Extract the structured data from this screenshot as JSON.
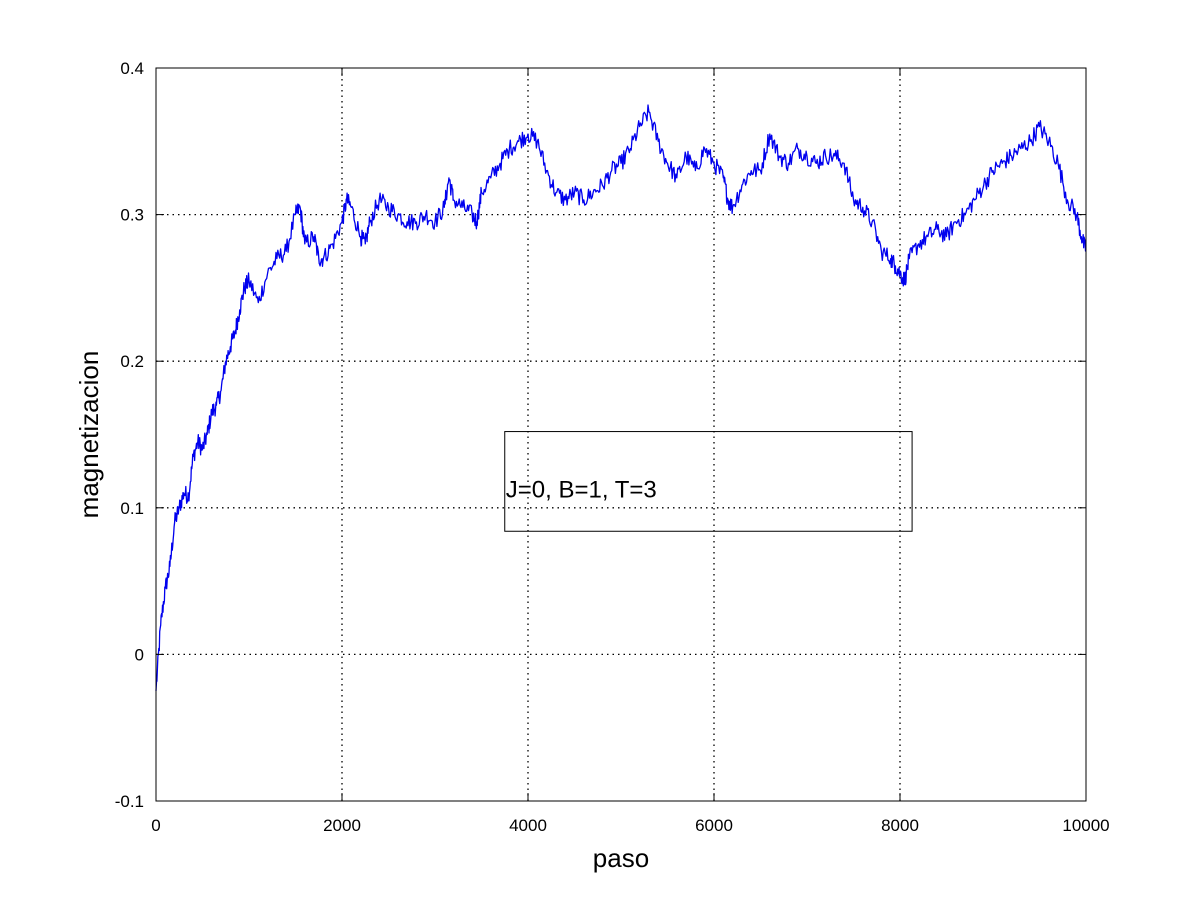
{
  "chart_data": {
    "type": "line",
    "title": "",
    "xlabel": "paso",
    "ylabel": "magnetizacion",
    "xlim": [
      0,
      10000
    ],
    "ylim": [
      -0.1,
      0.4
    ],
    "xticks": [
      0,
      2000,
      4000,
      6000,
      8000,
      10000
    ],
    "xtick_labels": [
      "0",
      "2000",
      "4000",
      "6000",
      "8000",
      "10000"
    ],
    "yticks": [
      -0.1,
      0,
      0.1,
      0.2,
      0.3,
      0.4
    ],
    "ytick_labels": [
      "-0.1",
      "0",
      "0.1",
      "0.2",
      "0.3",
      "0.4"
    ],
    "grid": true,
    "series": [
      {
        "color": "#0000ee",
        "x": [
          0,
          50,
          100,
          150,
          200,
          250,
          300,
          350,
          400,
          450,
          500,
          550,
          600,
          650,
          700,
          750,
          800,
          850,
          900,
          950,
          1000,
          1100,
          1200,
          1300,
          1400,
          1500,
          1550,
          1600,
          1700,
          1750,
          1800,
          1900,
          2000,
          2050,
          2100,
          2200,
          2250,
          2300,
          2400,
          2500,
          2600,
          2700,
          2800,
          2900,
          3000,
          3100,
          3150,
          3200,
          3300,
          3400,
          3450,
          3500,
          3600,
          3700,
          3800,
          3900,
          4000,
          4100,
          4200,
          4300,
          4400,
          4500,
          4600,
          4700,
          4800,
          4900,
          5000,
          5100,
          5200,
          5300,
          5400,
          5500,
          5600,
          5700,
          5800,
          5900,
          6000,
          6100,
          6150,
          6200,
          6300,
          6400,
          6500,
          6600,
          6700,
          6800,
          6900,
          7000,
          7100,
          7200,
          7300,
          7400,
          7500,
          7600,
          7700,
          7800,
          7900,
          7950,
          8000,
          8050,
          8100,
          8200,
          8300,
          8400,
          8500,
          8600,
          8700,
          8800,
          8900,
          9000,
          9100,
          9200,
          9300,
          9400,
          9500,
          9600,
          9700,
          9800,
          9900,
          9950,
          10000
        ],
        "y": [
          -0.025,
          0.02,
          0.045,
          0.06,
          0.09,
          0.1,
          0.11,
          0.108,
          0.135,
          0.145,
          0.14,
          0.15,
          0.165,
          0.17,
          0.18,
          0.2,
          0.21,
          0.22,
          0.235,
          0.25,
          0.255,
          0.24,
          0.26,
          0.27,
          0.275,
          0.3,
          0.305,
          0.28,
          0.285,
          0.27,
          0.27,
          0.28,
          0.295,
          0.31,
          0.305,
          0.285,
          0.28,
          0.295,
          0.31,
          0.305,
          0.3,
          0.295,
          0.295,
          0.3,
          0.295,
          0.305,
          0.325,
          0.31,
          0.305,
          0.3,
          0.295,
          0.315,
          0.325,
          0.335,
          0.345,
          0.35,
          0.355,
          0.35,
          0.33,
          0.315,
          0.31,
          0.315,
          0.31,
          0.315,
          0.32,
          0.33,
          0.335,
          0.345,
          0.36,
          0.37,
          0.35,
          0.335,
          0.325,
          0.34,
          0.33,
          0.345,
          0.335,
          0.325,
          0.31,
          0.305,
          0.32,
          0.33,
          0.33,
          0.355,
          0.34,
          0.335,
          0.345,
          0.34,
          0.335,
          0.34,
          0.34,
          0.335,
          0.31,
          0.305,
          0.295,
          0.275,
          0.27,
          0.265,
          0.26,
          0.255,
          0.27,
          0.28,
          0.285,
          0.29,
          0.285,
          0.295,
          0.3,
          0.31,
          0.32,
          0.33,
          0.335,
          0.34,
          0.345,
          0.35,
          0.36,
          0.35,
          0.335,
          0.31,
          0.3,
          0.285,
          0.275
        ]
      }
    ],
    "annotation": {
      "text": "J=0, B=1, T=3",
      "box": true
    }
  }
}
